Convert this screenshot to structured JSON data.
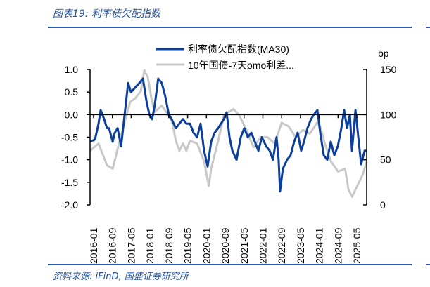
{
  "header": {
    "title": "图表19:  利率债欠配指数"
  },
  "footer": {
    "source": "资料来源:  iFinD, 国盛证券研究所"
  },
  "colors": {
    "accent": "#2a5ca8",
    "series_blue": "#0b3f9a",
    "series_gray": "#c8c8c8"
  },
  "chart_data": {
    "type": "line",
    "title": "利率债欠配指数",
    "x_unit": "months since 2016-01",
    "x_ticks": [
      "2016-01",
      "2016-09",
      "2017-05",
      "2018-01",
      "2018-09",
      "2019-05",
      "2020-01",
      "2020-09",
      "2021-05",
      "2022-01",
      "2022-09",
      "2023-05",
      "2024-01",
      "2024-09",
      "2025-05"
    ],
    "x_tick_step_months": 8,
    "xlim": [
      -1.5,
      116.2
    ],
    "left_axis": {
      "ylim": [
        -2.0,
        1.0
      ],
      "ticks": [
        "1.0",
        "0.5",
        "0.0",
        "-0.5",
        "-1.0",
        "-1.5",
        "-2.0"
      ]
    },
    "right_axis": {
      "label": "bp",
      "ylim": [
        0,
        150
      ],
      "ticks": [
        "150",
        "100",
        "50",
        "0"
      ]
    },
    "legend_position": "top-center",
    "series": [
      {
        "name": "利率债欠配指数(MA30)",
        "axis": "left",
        "points": [
          [
            -1.5,
            -0.6
          ],
          [
            0.6,
            -0.55
          ],
          [
            2.1,
            -0.2
          ],
          [
            3,
            0.1
          ],
          [
            4.5,
            -0.1
          ],
          [
            5.7,
            -0.3
          ],
          [
            6.6,
            -0.3
          ],
          [
            8.1,
            -0.6
          ],
          [
            9,
            -0.4
          ],
          [
            10.2,
            -0.3
          ],
          [
            11.7,
            -0.7
          ],
          [
            13.2,
            0.0
          ],
          [
            14.7,
            0.7
          ],
          [
            15.9,
            0.5
          ],
          [
            17.7,
            0.6
          ],
          [
            19.5,
            0.7
          ],
          [
            21,
            0.8
          ],
          [
            22.5,
            0.3
          ],
          [
            23.7,
            0.0
          ],
          [
            24.9,
            -0.1
          ],
          [
            26,
            0.2
          ],
          [
            27.5,
            0.8
          ],
          [
            29,
            0.7
          ],
          [
            30.5,
            0.4
          ],
          [
            32,
            0.0
          ],
          [
            33.2,
            -0.1
          ],
          [
            35,
            -0.3
          ],
          [
            36.5,
            -0.2
          ],
          [
            38,
            -0.1
          ],
          [
            39.5,
            -0.2
          ],
          [
            41,
            -0.2
          ],
          [
            42.5,
            -0.4
          ],
          [
            44,
            -0.5
          ],
          [
            45.5,
            -0.2
          ],
          [
            47,
            -0.8
          ],
          [
            48.5,
            -1.15
          ],
          [
            50,
            -0.6
          ],
          [
            51.5,
            -0.4
          ],
          [
            53,
            -0.3
          ],
          [
            55.4,
            -0.1
          ],
          [
            56.6,
            0.05
          ],
          [
            57.8,
            -0.5
          ],
          [
            59,
            -0.8
          ],
          [
            60.8,
            -1.0
          ],
          [
            62.6,
            -0.5
          ],
          [
            64.1,
            -0.3
          ],
          [
            65.6,
            -0.5
          ],
          [
            67.1,
            -0.4
          ],
          [
            68.6,
            -0.6
          ],
          [
            70.1,
            -0.8
          ],
          [
            71.6,
            -0.5
          ],
          [
            73.4,
            -0.7
          ],
          [
            74.9,
            -0.8
          ],
          [
            76.3,
            -1.0
          ],
          [
            77.8,
            -0.5
          ],
          [
            78.7,
            -1.0
          ],
          [
            79.3,
            -1.7
          ],
          [
            80.5,
            -1.2
          ],
          [
            82.3,
            -1.0
          ],
          [
            83.8,
            -0.9
          ],
          [
            85.3,
            -0.6
          ],
          [
            86.8,
            -0.4
          ],
          [
            88.3,
            -0.8
          ],
          [
            89.5,
            -0.6
          ],
          [
            91,
            -0.3
          ],
          [
            92.5,
            -0.1
          ],
          [
            93.7,
            0.0
          ],
          [
            95.2,
            0.1
          ],
          [
            96.4,
            -0.4
          ],
          [
            97.9,
            -0.9
          ],
          [
            99.4,
            -1.0
          ],
          [
            100.9,
            -0.6
          ],
          [
            102.4,
            -0.9
          ],
          [
            103.9,
            -0.7
          ],
          [
            105.4,
            -0.3
          ],
          [
            106.6,
            0.1
          ],
          [
            107.8,
            -0.3
          ],
          [
            109,
            0.0
          ],
          [
            109.9,
            -0.8
          ],
          [
            111.4,
            0.1
          ],
          [
            112.6,
            -0.5
          ],
          [
            113.8,
            -1.1
          ],
          [
            115.3,
            -0.8
          ],
          [
            116.2,
            -0.8
          ]
        ]
      },
      {
        "name": "10年国债-7天omo利差...",
        "axis": "right",
        "points": [
          [
            -1.5,
            60
          ],
          [
            2.1,
            68
          ],
          [
            5.7,
            44
          ],
          [
            8.1,
            40
          ],
          [
            11.1,
            71
          ],
          [
            13.5,
            95
          ],
          [
            15.6,
            114
          ],
          [
            17.7,
            118
          ],
          [
            20.1,
            126
          ],
          [
            21.6,
            149
          ],
          [
            23.1,
            141
          ],
          [
            24.6,
            118
          ],
          [
            26,
            103
          ],
          [
            29,
            110
          ],
          [
            32,
            99
          ],
          [
            33.5,
            91
          ],
          [
            35,
            71
          ],
          [
            36.5,
            60
          ],
          [
            38,
            68
          ],
          [
            39.5,
            60
          ],
          [
            41,
            71
          ],
          [
            44,
            68
          ],
          [
            47,
            48
          ],
          [
            49,
            21
          ],
          [
            50,
            40
          ],
          [
            53,
            71
          ],
          [
            55.4,
            99
          ],
          [
            57.5,
            103
          ],
          [
            59.6,
            106
          ],
          [
            62,
            99
          ],
          [
            65,
            83
          ],
          [
            68,
            64
          ],
          [
            71,
            75
          ],
          [
            74,
            75
          ],
          [
            77,
            68
          ],
          [
            80,
            91
          ],
          [
            83,
            87
          ],
          [
            86,
            75
          ],
          [
            89,
            83
          ],
          [
            92,
            79
          ],
          [
            95,
            91
          ],
          [
            96.4,
            87
          ],
          [
            98,
            71
          ],
          [
            101,
            48
          ],
          [
            104,
            37
          ],
          [
            107,
            40
          ],
          [
            108.4,
            17
          ],
          [
            110,
            9
          ],
          [
            111.4,
            17
          ],
          [
            112.9,
            25
          ],
          [
            114.4,
            33
          ],
          [
            116.2,
            48
          ]
        ]
      }
    ]
  }
}
